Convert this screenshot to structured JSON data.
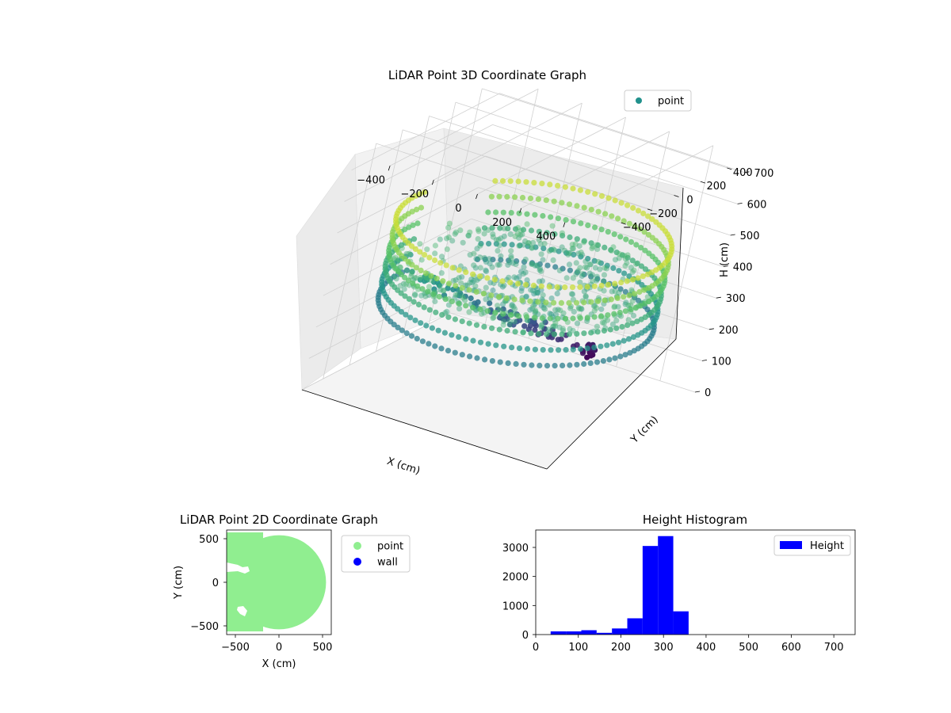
{
  "chart_data": [
    {
      "type": "scatter3d",
      "title": "LiDAR Point 3D Coordinate Graph",
      "xlabel": "X (cm)",
      "ylabel": "Y (cm)",
      "zlabel": "H (cm)",
      "x_ticks": [
        -400,
        -200,
        0,
        200,
        400
      ],
      "y_ticks": [
        400,
        200,
        0,
        -200,
        -400
      ],
      "z_ticks": [
        0,
        100,
        200,
        300,
        400,
        500,
        600,
        700
      ],
      "xlim": [
        -560,
        560
      ],
      "ylim": [
        -560,
        560
      ],
      "zlim": [
        0,
        750
      ],
      "z_inverted": true,
      "colormap": "viridis",
      "legend": {
        "position": "top-right",
        "entries": [
          "point"
        ],
        "color": "#21918c"
      },
      "description_series": {
        "name": "point",
        "ring_radius_cm": 540,
        "ring_height_range_cm": [
          250,
          500
        ],
        "floor_height_cm": [
          280,
          330
        ],
        "dark_cluster": {
          "x": 150,
          "y": 420,
          "h": 70
        }
      }
    },
    {
      "type": "scatter",
      "title": "LiDAR Point 2D Coordinate Graph",
      "xlabel": "X (cm)",
      "ylabel": "Y (cm)",
      "x_ticks": [
        -500,
        0,
        500
      ],
      "y_ticks": [
        500,
        0,
        -500
      ],
      "xlim": [
        -600,
        600
      ],
      "ylim": [
        -600,
        600
      ],
      "legend": {
        "position": "outside-right",
        "entries": [
          {
            "name": "point",
            "color": "#90ee90"
          },
          {
            "name": "wall",
            "color": "#0000ff"
          }
        ]
      },
      "region": {
        "center": [
          0,
          0
        ],
        "radius": 540,
        "x_cut_left": -600
      }
    },
    {
      "type": "bar",
      "title": "Height Histogram",
      "xlabel": "",
      "ylabel": "",
      "x_ticks": [
        0,
        100,
        200,
        300,
        400,
        500,
        600,
        700
      ],
      "y_ticks": [
        0,
        1000,
        2000,
        3000
      ],
      "xlim": [
        0,
        750
      ],
      "ylim": [
        0,
        3600
      ],
      "legend": {
        "position": "top-right",
        "entries": [
          "Height"
        ],
        "color": "#0000ff"
      },
      "bins": [
        {
          "x0": 35,
          "x1": 71,
          "value": 110
        },
        {
          "x0": 71,
          "x1": 107,
          "value": 110
        },
        {
          "x0": 107,
          "x1": 143,
          "value": 150
        },
        {
          "x0": 143,
          "x1": 179,
          "value": 60
        },
        {
          "x0": 179,
          "x1": 215,
          "value": 210
        },
        {
          "x0": 215,
          "x1": 251,
          "value": 560
        },
        {
          "x0": 251,
          "x1": 287,
          "value": 3050
        },
        {
          "x0": 287,
          "x1": 323,
          "value": 3390
        },
        {
          "x0": 323,
          "x1": 359,
          "value": 800
        }
      ]
    }
  ]
}
